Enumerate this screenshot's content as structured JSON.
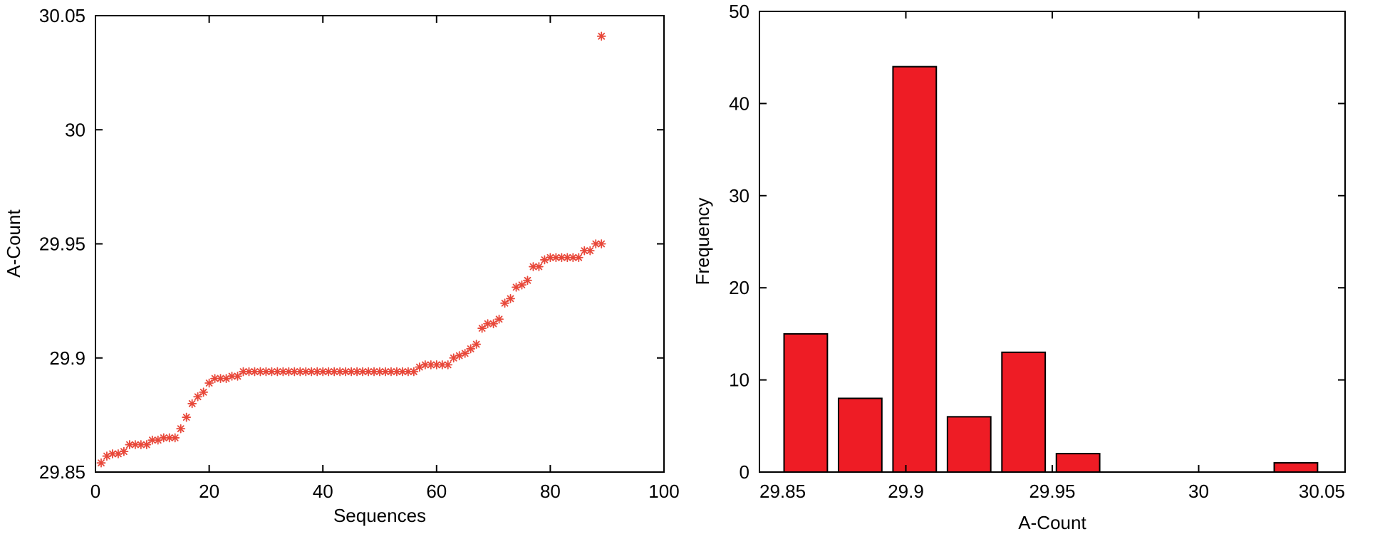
{
  "chart_data": [
    {
      "type": "scatter",
      "title": "",
      "xlabel": "Sequences",
      "ylabel": "A-Count",
      "xlim": [
        0,
        100
      ],
      "ylim": [
        29.85,
        30.05
      ],
      "xticks": [
        0,
        20,
        40,
        60,
        80,
        100
      ],
      "xtick_labels": [
        "0",
        "20",
        "40",
        "60",
        "80",
        "100"
      ],
      "yticks": [
        29.85,
        29.9,
        29.95,
        30,
        30.05
      ],
      "ytick_labels": [
        "29.85",
        "29.9",
        "29.95",
        "30",
        "30.05"
      ],
      "marker": "asterisk",
      "marker_color": "#E8483A",
      "grid": false,
      "legend": "none",
      "x": [
        1,
        2,
        3,
        4,
        5,
        6,
        7,
        8,
        9,
        10,
        11,
        12,
        13,
        14,
        15,
        16,
        17,
        18,
        19,
        20,
        21,
        22,
        23,
        24,
        25,
        26,
        27,
        28,
        29,
        30,
        31,
        32,
        33,
        34,
        35,
        36,
        37,
        38,
        39,
        40,
        41,
        42,
        43,
        44,
        45,
        46,
        47,
        48,
        49,
        50,
        51,
        52,
        53,
        54,
        55,
        56,
        57,
        58,
        59,
        60,
        61,
        62,
        63,
        64,
        65,
        66,
        67,
        68,
        69,
        70,
        71,
        72,
        73,
        74,
        75,
        76,
        77,
        78,
        79,
        80,
        81,
        82,
        83,
        84,
        85,
        86,
        87,
        88,
        89
      ],
      "y": [
        29.854,
        29.857,
        29.858,
        29.858,
        29.859,
        29.862,
        29.862,
        29.862,
        29.862,
        29.864,
        29.864,
        29.865,
        29.865,
        29.865,
        29.869,
        29.874,
        29.88,
        29.883,
        29.885,
        29.889,
        29.891,
        29.891,
        29.891,
        29.892,
        29.892,
        29.894,
        29.894,
        29.894,
        29.894,
        29.894,
        29.894,
        29.894,
        29.894,
        29.894,
        29.894,
        29.894,
        29.894,
        29.894,
        29.894,
        29.894,
        29.894,
        29.894,
        29.894,
        29.894,
        29.894,
        29.894,
        29.894,
        29.894,
        29.894,
        29.894,
        29.894,
        29.894,
        29.894,
        29.894,
        29.894,
        29.894,
        29.896,
        29.897,
        29.897,
        29.897,
        29.897,
        29.897,
        29.9,
        29.901,
        29.902,
        29.904,
        29.906,
        29.913,
        29.915,
        29.915,
        29.917,
        29.924,
        29.926,
        29.931,
        29.932,
        29.934,
        29.94,
        29.94,
        29.943,
        29.944,
        29.944,
        29.944,
        29.944,
        29.944,
        29.944,
        29.947,
        29.947,
        29.95,
        29.95
      ],
      "outlier": {
        "x": 89,
        "y": 30.041
      }
    },
    {
      "type": "bar",
      "title": "",
      "xlabel": "A-Count",
      "ylabel": "Frequency",
      "xlim": [
        29.85,
        30.05
      ],
      "ylim": [
        0,
        50
      ],
      "xticks": [
        29.85,
        29.9,
        29.95,
        30,
        30.05
      ],
      "xtick_labels": [
        "29.85",
        "29.9",
        "29.95",
        "30",
        "30.05"
      ],
      "yticks": [
        0,
        10,
        20,
        30,
        40,
        50
      ],
      "ytick_labels": [
        "0",
        "10",
        "20",
        "30",
        "40",
        "50"
      ],
      "bin_centers": [
        29.8658,
        29.8844,
        29.903,
        29.9216,
        29.9402,
        29.9588,
        29.9774,
        29.996,
        30.0146,
        30.0332
      ],
      "bar_width": 0.0148,
      "values": [
        15,
        8,
        44,
        6,
        13,
        2,
        0,
        0,
        0,
        1
      ],
      "bar_color": "#EE1C25",
      "grid": false,
      "legend": "none"
    }
  ]
}
